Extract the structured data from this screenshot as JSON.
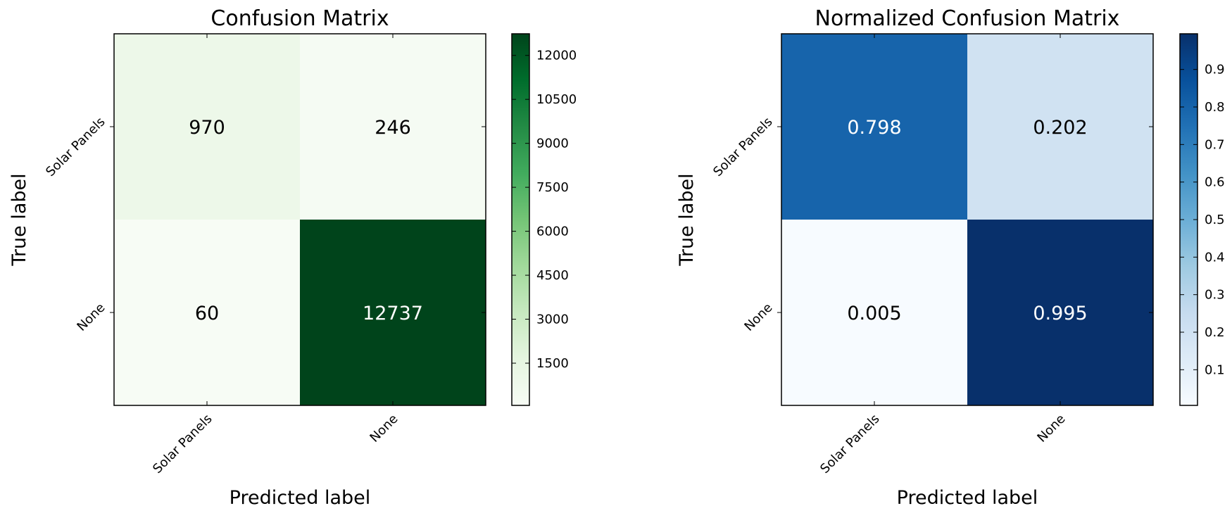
{
  "chart_data": [
    {
      "type": "heatmap",
      "title": "Confusion Matrix",
      "xlabel": "Predicted label",
      "ylabel": "True label",
      "x_categories": [
        "Solar Panels",
        "None"
      ],
      "y_categories": [
        "Solar Panels",
        "None"
      ],
      "values": [
        [
          970,
          246
        ],
        [
          60,
          12737
        ]
      ],
      "value_labels": [
        [
          "970",
          "246"
        ],
        [
          "60",
          "12737"
        ]
      ],
      "colormap": "Greens",
      "colormap_stops": [
        "#f7fcf5",
        "#e5f5e0",
        "#c7e9c0",
        "#a1d99b",
        "#74c476",
        "#41ab5d",
        "#238b45",
        "#006d2c",
        "#00441b"
      ],
      "colorbar_range": [
        60,
        12737
      ],
      "colorbar_ticks": [
        1500,
        3000,
        4500,
        6000,
        7500,
        9000,
        10500,
        12000
      ],
      "colorbar_tick_labels": [
        "1500",
        "3000",
        "4500",
        "6000",
        "7500",
        "9000",
        "10500",
        "12000"
      ]
    },
    {
      "type": "heatmap",
      "title": "Normalized Confusion Matrix",
      "xlabel": "Predicted label",
      "ylabel": "True label",
      "x_categories": [
        "Solar Panels",
        "None"
      ],
      "y_categories": [
        "Solar Panels",
        "None"
      ],
      "values": [
        [
          0.798,
          0.202
        ],
        [
          0.005,
          0.995
        ]
      ],
      "value_labels": [
        [
          "0.798",
          "0.202"
        ],
        [
          "0.005",
          "0.995"
        ]
      ],
      "colormap": "Blues",
      "colormap_stops": [
        "#f7fbff",
        "#deebf7",
        "#c6dbef",
        "#9ecae1",
        "#6baed6",
        "#4292c6",
        "#2171b5",
        "#08519c",
        "#08306b"
      ],
      "colorbar_range": [
        0.005,
        0.995
      ],
      "colorbar_ticks": [
        0.1,
        0.2,
        0.3,
        0.4,
        0.5,
        0.6,
        0.7,
        0.8,
        0.9
      ],
      "colorbar_tick_labels": [
        "0.1",
        "0.2",
        "0.3",
        "0.4",
        "0.5",
        "0.6",
        "0.7",
        "0.8",
        "0.9"
      ]
    }
  ]
}
